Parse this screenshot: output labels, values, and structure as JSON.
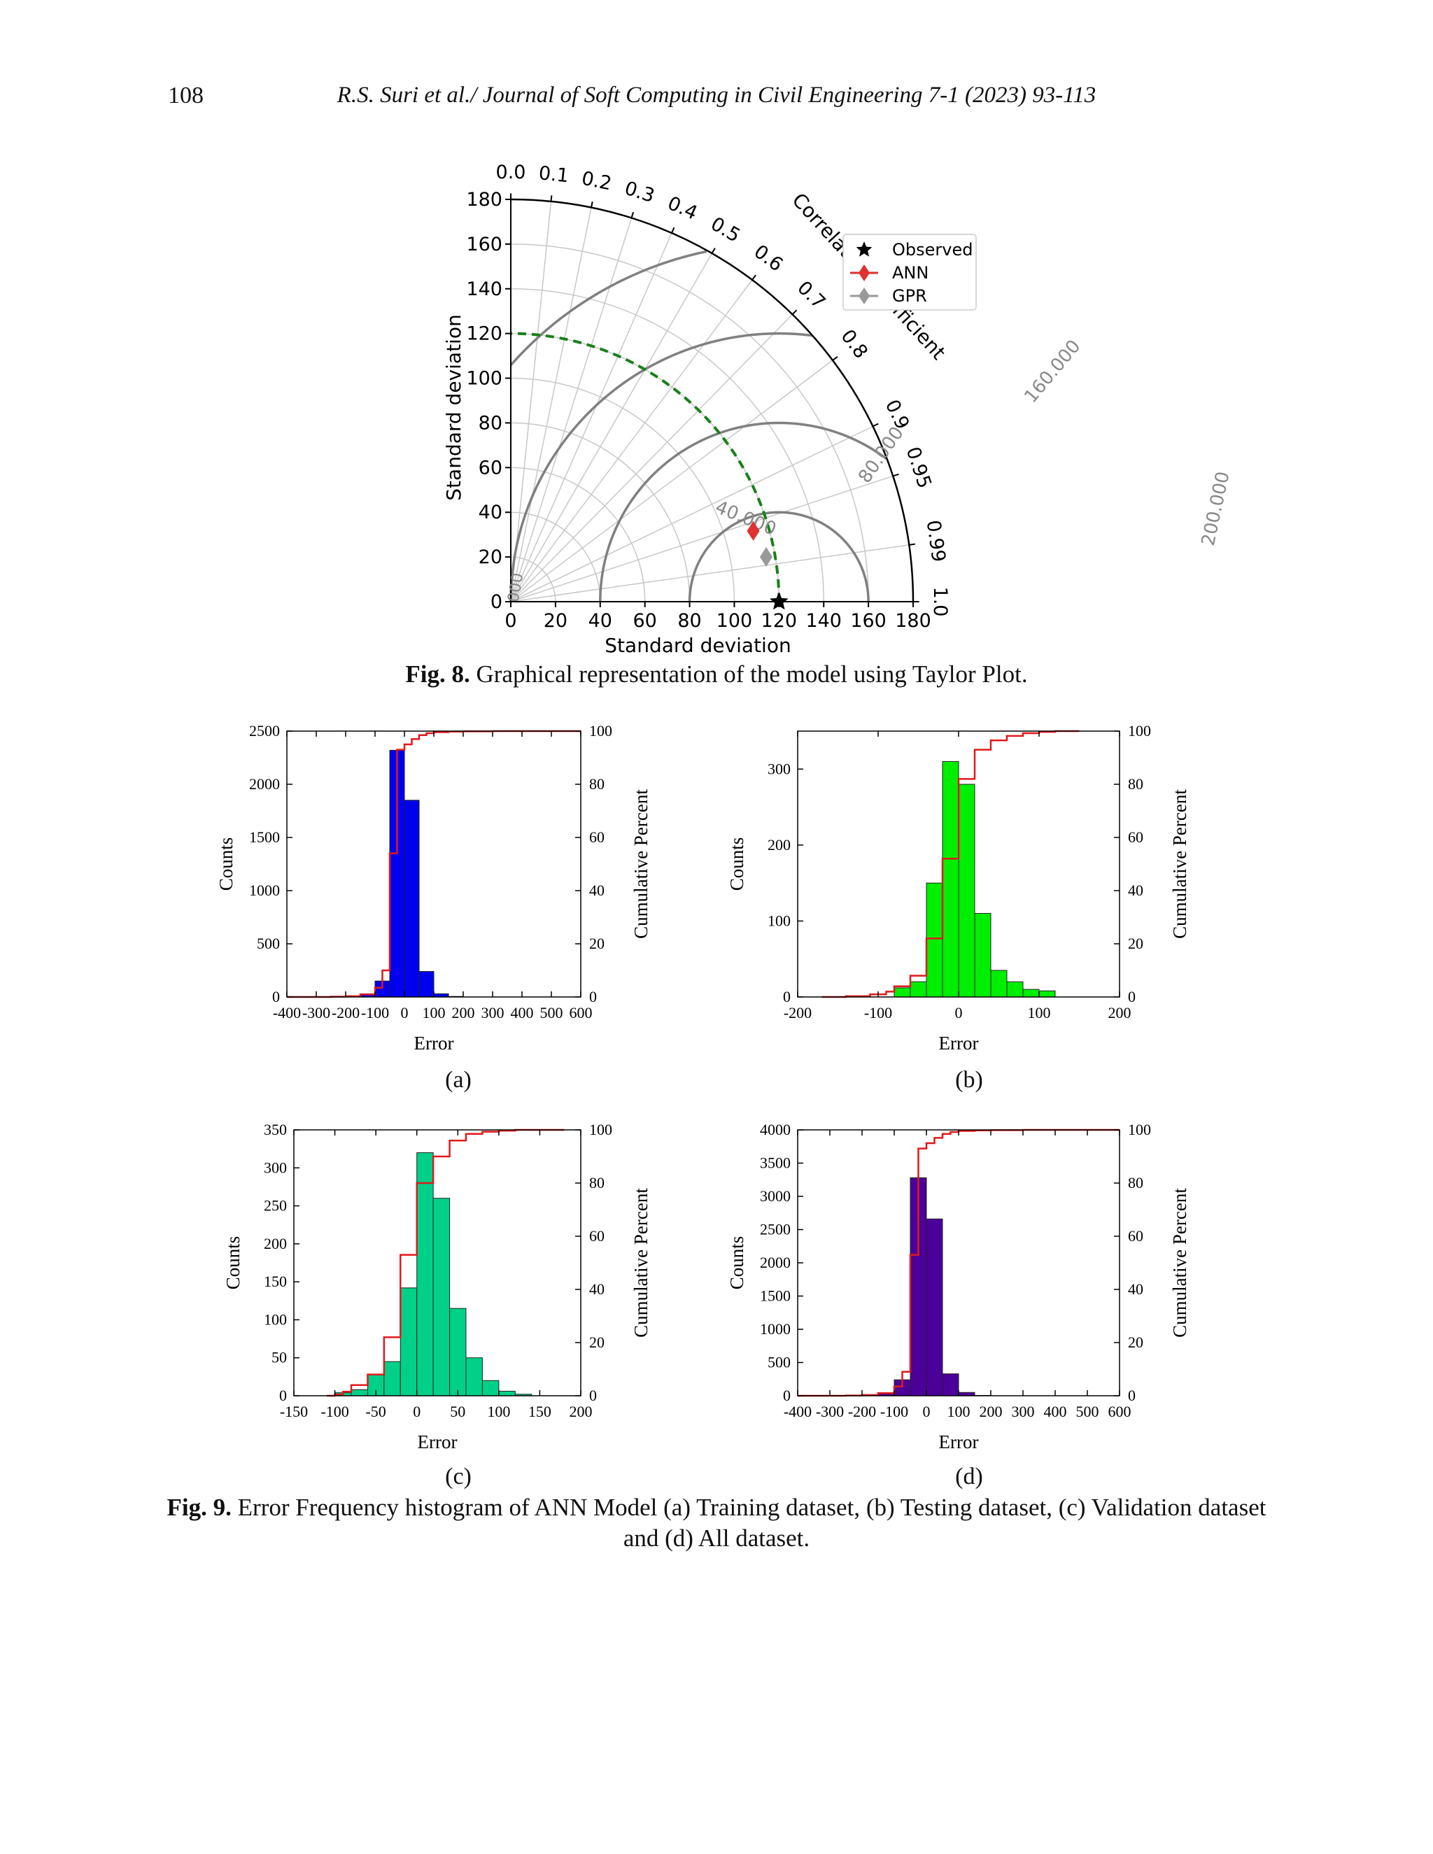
{
  "header": {
    "page_number": "108",
    "running_head": "R.S. Suri et al./ Journal of Soft Computing in Civil Engineering 7-1 (2023) 93-113"
  },
  "figure8": {
    "caption_label": "Fig. 8.",
    "caption_text": " Graphical representation of the model using Taylor Plot.",
    "chart_data": {
      "type": "taylor",
      "xlabel": "Standard deviation",
      "ylabel": "Standard deviation",
      "arc_label": "Correlation coefficient",
      "std_ticks": [
        "0",
        "20",
        "40",
        "60",
        "80",
        "100",
        "120",
        "140",
        "160",
        "180"
      ],
      "std_max": 180,
      "corr_ticks": [
        "0.0",
        "0.1",
        "0.2",
        "0.3",
        "0.4",
        "0.5",
        "0.6",
        "0.7",
        "0.8",
        "0.9",
        "0.95",
        "0.99",
        "1.0"
      ],
      "rms_contour_labels": [
        "40.000",
        "80.000",
        "160.000",
        "200.000",
        "000"
      ],
      "reference_std": 120,
      "points": [
        {
          "name": "Observed",
          "std": 120,
          "corr": 1.0,
          "color": "#000000",
          "marker": "star"
        },
        {
          "name": "ANN",
          "std": 113,
          "corr": 0.96,
          "color": "#e03030",
          "marker": "diamond"
        },
        {
          "name": "GPR",
          "std": 116,
          "corr": 0.985,
          "color": "#999999",
          "marker": "diamond"
        }
      ],
      "legend": {
        "placement": "top-right",
        "entries": [
          "Observed",
          "ANN",
          "GPR"
        ]
      }
    }
  },
  "figure9": {
    "caption_label": "Fig. 9.",
    "caption_text": " Error Frequency histogram of ANN Model (a) Training dataset, (b) Testing dataset, (c) Validation dataset and (d) All dataset.",
    "panel_labels": [
      "(a)",
      "(b)",
      "(c)",
      "(d)"
    ],
    "chart_data": [
      {
        "type": "bar",
        "panel": "(a)",
        "xlabel": "Error",
        "ylabel": "Counts",
        "y2label": "Cumulative Percent",
        "xlim": [
          -400,
          600
        ],
        "ylim": [
          0,
          2500
        ],
        "y2lim": [
          0,
          100
        ],
        "color": "#0000ee",
        "xticks": [
          -400,
          -300,
          -200,
          -100,
          0,
          100,
          200,
          300,
          400,
          500,
          600
        ],
        "xtick_labels": [
          "-400",
          "-300",
          "-200",
          "-100",
          "0",
          "100",
          "200",
          "300",
          "400",
          "500",
          "600"
        ],
        "yticks": [
          0,
          500,
          1000,
          1500,
          2000,
          2500
        ],
        "y2ticks": [
          0,
          20,
          40,
          60,
          80,
          100
        ],
        "bin_edges": [
          -250,
          -200,
          -150,
          -100,
          -50,
          0,
          50,
          100,
          150,
          200
        ],
        "counts": [
          2,
          5,
          30,
          150,
          2320,
          1850,
          240,
          30,
          5
        ],
        "cumulative_x": [
          -400,
          -300,
          -250,
          -200,
          -150,
          -100,
          -75,
          -50,
          -25,
          0,
          25,
          50,
          75,
          100,
          150,
          200,
          300,
          400,
          500,
          600
        ],
        "cumulative": [
          0,
          0,
          0.1,
          0.3,
          1.0,
          3.5,
          10,
          54,
          93,
          95,
          97,
          98.5,
          99.2,
          99.6,
          99.8,
          99.9,
          100,
          100,
          100,
          100
        ]
      },
      {
        "type": "bar",
        "panel": "(b)",
        "xlabel": "Error",
        "ylabel": "Counts",
        "y2label": "Cumulative Percent",
        "xlim": [
          -200,
          200
        ],
        "ylim": [
          0,
          350
        ],
        "y2lim": [
          0,
          100
        ],
        "color": "#00ee00",
        "xticks": [
          -200,
          -100,
          0,
          100,
          200
        ],
        "xtick_labels": [
          "-200",
          "-100",
          "0",
          "100",
          "200"
        ],
        "yticks": [
          0,
          100,
          200,
          300
        ],
        "y2ticks": [
          0,
          20,
          40,
          60,
          80,
          100
        ],
        "bin_edges": [
          -80,
          -60,
          -40,
          -20,
          0,
          20,
          40,
          60,
          80,
          100,
          120
        ],
        "counts": [
          12,
          20,
          150,
          310,
          280,
          110,
          35,
          20,
          10,
          8
        ],
        "cumulative_x": [
          -170,
          -140,
          -110,
          -90,
          -80,
          -60,
          -40,
          -20,
          0,
          20,
          40,
          60,
          80,
          100,
          120,
          150
        ],
        "cumulative": [
          0,
          0.3,
          1,
          2,
          4,
          8,
          22,
          52,
          82,
          93,
          96.5,
          98.2,
          99.2,
          99.7,
          100,
          100
        ]
      },
      {
        "type": "bar",
        "panel": "(c)",
        "xlabel": "Error",
        "ylabel": "Counts",
        "y2label": "Cumulative Percent",
        "xlim": [
          -150,
          200
        ],
        "ylim": [
          0,
          350
        ],
        "y2lim": [
          0,
          100
        ],
        "color": "#00d088",
        "xticks": [
          -150,
          -100,
          -50,
          0,
          50,
          100,
          150,
          200
        ],
        "xtick_labels": [
          "-150",
          "-100",
          "-50",
          "0",
          "50",
          "100",
          "150",
          "200"
        ],
        "yticks": [
          0,
          50,
          100,
          150,
          200,
          250,
          300,
          350
        ],
        "y2ticks": [
          0,
          20,
          40,
          60,
          80,
          100
        ],
        "bin_edges": [
          -100,
          -80,
          -60,
          -40,
          -20,
          0,
          20,
          40,
          60,
          80,
          100,
          120,
          140
        ],
        "counts": [
          4,
          8,
          28,
          45,
          142,
          320,
          260,
          115,
          50,
          20,
          6,
          2
        ],
        "cumulative_x": [
          -110,
          -100,
          -90,
          -80,
          -60,
          -40,
          -20,
          0,
          20,
          40,
          60,
          80,
          100,
          120,
          160,
          180
        ],
        "cumulative": [
          0,
          0.5,
          1.5,
          4,
          8,
          22,
          53,
          80,
          90,
          96,
          98.5,
          99.3,
          99.7,
          100,
          100,
          100
        ]
      },
      {
        "type": "bar",
        "panel": "(d)",
        "xlabel": "Error",
        "ylabel": "Counts",
        "y2label": "Cumulative Percent",
        "xlim": [
          -400,
          600
        ],
        "ylim": [
          0,
          4000
        ],
        "y2lim": [
          0,
          100
        ],
        "color": "#4b0099",
        "xticks": [
          -400,
          -300,
          -200,
          -100,
          0,
          100,
          200,
          300,
          400,
          500,
          600
        ],
        "xtick_labels": [
          "-400",
          "-300",
          "-200",
          "-100",
          "0",
          "100",
          "200",
          "300",
          "400",
          "500",
          "600"
        ],
        "yticks": [
          0,
          500,
          1000,
          1500,
          2000,
          2500,
          3000,
          3500,
          4000
        ],
        "y2ticks": [
          0,
          20,
          40,
          60,
          80,
          100
        ],
        "bin_edges": [
          -250,
          -200,
          -150,
          -100,
          -50,
          0,
          50,
          100,
          150,
          200
        ],
        "counts": [
          3,
          8,
          40,
          240,
          3280,
          2660,
          330,
          50,
          5
        ],
        "cumulative_x": [
          -400,
          -300,
          -250,
          -200,
          -150,
          -100,
          -75,
          -50,
          -25,
          0,
          25,
          50,
          75,
          100,
          150,
          200,
          300,
          400,
          500,
          600
        ],
        "cumulative": [
          0,
          0,
          0.1,
          0.3,
          1.0,
          3.5,
          9,
          53,
          93,
          95,
          97,
          98.5,
          99.2,
          99.6,
          99.8,
          99.9,
          100,
          100,
          100,
          100
        ]
      }
    ]
  }
}
